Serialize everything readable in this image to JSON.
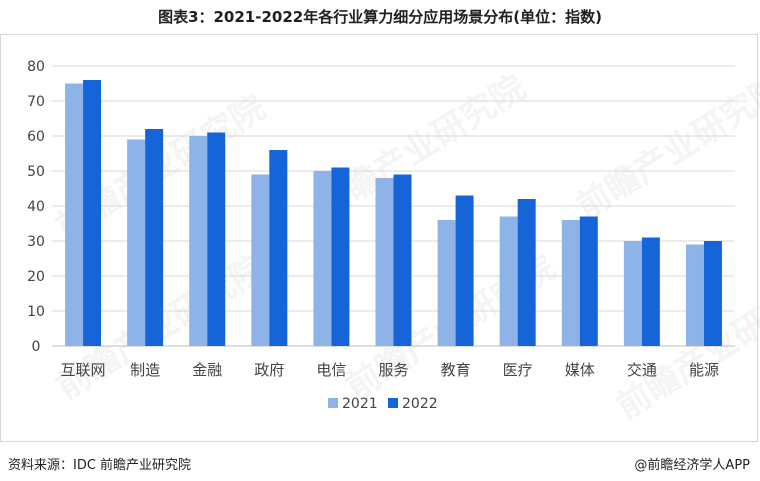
{
  "title": "图表3：2021-2022年各行业算力细分应用场景分布(单位：指数)",
  "footer": {
    "source": "资料来源：IDC 前瞻产业研究院",
    "brand": "@前瞻经济学人APP"
  },
  "watermark": "前瞻产业研究院",
  "colors": {
    "series_2021": "#8db3e8",
    "series_2022": "#1565d8",
    "grid": "#d9d9d9"
  },
  "chart_data": {
    "type": "bar",
    "title": "图表3：2021-2022年各行业算力细分应用场景分布(单位：指数)",
    "categories": [
      "互联网",
      "制造",
      "金融",
      "政府",
      "电信",
      "服务",
      "教育",
      "医疗",
      "媒体",
      "交通",
      "能源"
    ],
    "series": [
      {
        "name": "2021",
        "values": [
          75,
          59,
          60,
          49,
          50,
          48,
          36,
          37,
          36,
          30,
          29
        ]
      },
      {
        "name": "2022",
        "values": [
          76,
          62,
          61,
          56,
          51,
          49,
          43,
          42,
          37,
          31,
          30
        ]
      }
    ],
    "ylim": [
      0,
      80
    ],
    "yticks": [
      0,
      10,
      20,
      30,
      40,
      50,
      60,
      70,
      80
    ],
    "grid": true,
    "legend": "bottom-center",
    "xlabel": "",
    "ylabel": ""
  }
}
